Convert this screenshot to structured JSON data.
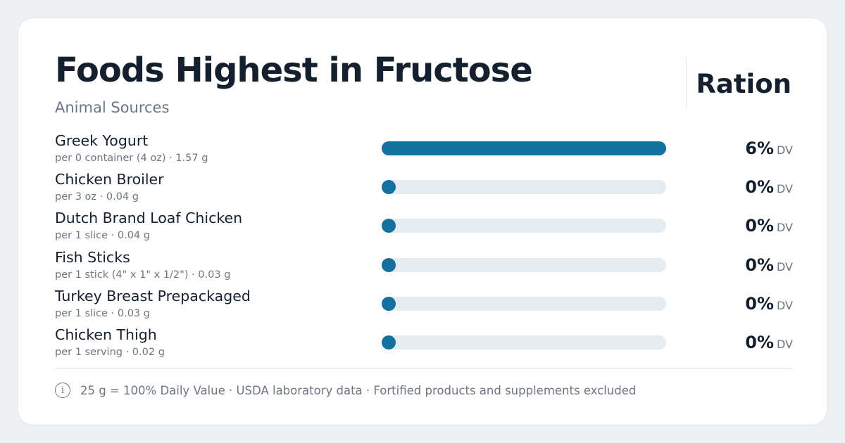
{
  "header": {
    "title": "Foods Highest in Fructose",
    "subtitle": "Animal Sources",
    "brand": "Ration"
  },
  "footer": {
    "icon": "info-icon",
    "note": "25 g = 100% Daily Value · USDA laboratory data · Fortified products and supplements excluded"
  },
  "colors": {
    "bar_fill": "#14709e",
    "bar_track": "#e6ebef"
  },
  "chart_data": {
    "type": "bar",
    "orientation": "horizontal",
    "title": "Foods Highest in Fructose",
    "subtitle": "Animal Sources",
    "daily_value_grams": 25,
    "unit": "DV",
    "items": [
      {
        "name": "Greek Yogurt",
        "serving": "per 0 container (4 oz) · 1.57 g",
        "grams": 1.57,
        "dv_percent": 6,
        "dv_label": "6%"
      },
      {
        "name": "Chicken Broiler",
        "serving": "per 3 oz · 0.04 g",
        "grams": 0.04,
        "dv_percent": 0,
        "dv_label": "0%"
      },
      {
        "name": "Dutch Brand Loaf Chicken",
        "serving": "per 1 slice · 0.04 g",
        "grams": 0.04,
        "dv_percent": 0,
        "dv_label": "0%"
      },
      {
        "name": "Fish Sticks",
        "serving": "per 1 stick (4\" x 1\" x 1/2\") · 0.03 g",
        "grams": 0.03,
        "dv_percent": 0,
        "dv_label": "0%"
      },
      {
        "name": "Turkey Breast Prepackaged",
        "serving": "per 1 slice · 0.03 g",
        "grams": 0.03,
        "dv_percent": 0,
        "dv_label": "0%"
      },
      {
        "name": "Chicken Thigh",
        "serving": "per 1 serving · 0.02 g",
        "grams": 0.02,
        "dv_percent": 0,
        "dv_label": "0%"
      }
    ]
  }
}
